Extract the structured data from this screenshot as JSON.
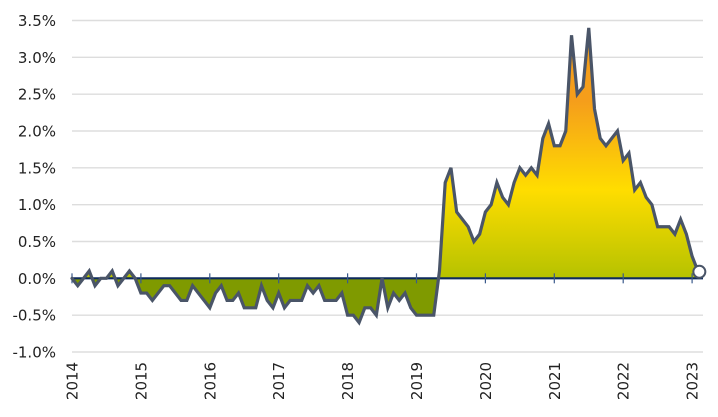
{
  "chart_data": {
    "type": "area",
    "title": "",
    "xlabel": "",
    "ylabel": "",
    "ylim": [
      -1.0,
      3.5
    ],
    "y_ticks": [
      "3.5%",
      "3.0%",
      "2.5%",
      "2.0%",
      "1.5%",
      "1.0%",
      "0.5%",
      "0.0%",
      "-0.5%",
      "-1.0%"
    ],
    "y_tick_values": [
      3.5,
      3.0,
      2.5,
      2.0,
      1.5,
      1.0,
      0.5,
      0.0,
      -0.5,
      -1.0
    ],
    "x_ticks": [
      "2014",
      "2015",
      "2016",
      "2017",
      "2018",
      "2019",
      "2020",
      "2021",
      "2022",
      "2023"
    ],
    "grid": true,
    "legend": null,
    "frequency": "monthly",
    "start": "2014-01",
    "series": [
      {
        "name": "value",
        "unit": "%",
        "values": [
          0.0,
          -0.1,
          0.0,
          0.1,
          -0.1,
          0.0,
          0.0,
          0.1,
          -0.1,
          0.0,
          0.1,
          0.0,
          -0.2,
          -0.2,
          -0.3,
          -0.2,
          -0.1,
          -0.1,
          -0.2,
          -0.3,
          -0.3,
          -0.1,
          -0.2,
          -0.3,
          -0.4,
          -0.2,
          -0.1,
          -0.3,
          -0.3,
          -0.2,
          -0.4,
          -0.4,
          -0.4,
          -0.1,
          -0.3,
          -0.4,
          -0.2,
          -0.4,
          -0.3,
          -0.3,
          -0.3,
          -0.1,
          -0.2,
          -0.1,
          -0.3,
          -0.3,
          -0.3,
          -0.2,
          -0.5,
          -0.5,
          -0.6,
          -0.4,
          -0.4,
          -0.5,
          0.0,
          -0.4,
          -0.2,
          -0.3,
          -0.2,
          -0.4,
          -0.5,
          -0.5,
          -0.5,
          -0.5,
          0.1,
          1.3,
          1.5,
          0.9,
          0.8,
          0.7,
          0.5,
          0.6,
          0.9,
          1.0,
          1.3,
          1.1,
          1.0,
          1.3,
          1.5,
          1.4,
          1.5,
          1.4,
          1.9,
          2.1,
          1.8,
          1.8,
          2.0,
          3.3,
          2.5,
          2.6,
          3.4,
          2.3,
          1.9,
          1.8,
          1.9,
          2.0,
          1.6,
          1.7,
          1.2,
          1.3,
          1.1,
          1.0,
          0.7,
          0.7,
          0.7,
          0.6,
          0.8,
          0.6,
          0.3,
          0.1
        ]
      }
    ],
    "end_marker": "last-point-circle"
  },
  "colors": {
    "line": "#4a5568",
    "zero_line": "#0d2a5c",
    "grid": "#dddddd",
    "fill_negative": "#7f9a00",
    "fill_low": "#b5c200",
    "fill_mid": "#ffdd00",
    "fill_high": "#f59e1b",
    "marker_fill": "#ffffff"
  }
}
